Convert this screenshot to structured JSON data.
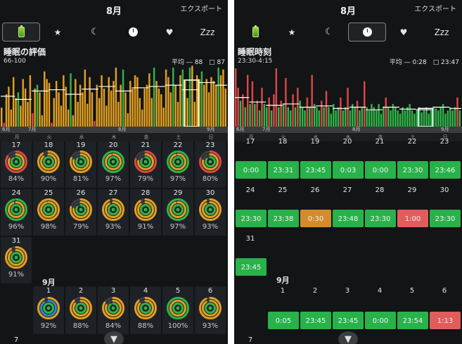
{
  "colors": {
    "background": "#121416",
    "grade_low": "#e04646",
    "grade_mid": "#e2a021",
    "grade_high": "#30b54a",
    "avg_line": "#ffffff"
  },
  "left": {
    "header": {
      "title": "8月",
      "export_label": "エクスポート"
    },
    "icon_bar": [
      {
        "icon": "battery-icon",
        "label": "",
        "active": true
      },
      {
        "icon": "star-icon",
        "label": "★",
        "active": false
      },
      {
        "icon": "moon-icon",
        "label": "☾",
        "active": false
      },
      {
        "icon": "clock-icon",
        "label": "",
        "active": false
      },
      {
        "icon": "heart-icon",
        "label": "♥",
        "active": false
      },
      {
        "icon": "zzz-icon",
        "label": "Zzz",
        "active": false
      }
    ],
    "chart_title": "睡眠の評価",
    "chart_range": "66-100",
    "chart_avg": "平均 ― 88　□ 87",
    "axis_labels": [
      "6月",
      "7月",
      "8月",
      "9月"
    ],
    "chart_data": {
      "type": "bar",
      "title": "睡眠の評価",
      "ylim": [
        66,
        100
      ],
      "average": 88,
      "values": [
        76,
        68,
        83,
        87,
        75,
        92,
        81,
        84,
        77,
        91,
        86,
        79,
        93,
        73,
        86,
        88,
        84,
        72,
        95,
        91,
        89,
        68,
        81,
        90,
        84,
        77,
        93,
        87,
        75,
        94,
        72,
        91,
        79,
        88,
        84,
        96,
        78,
        92,
        84,
        69,
        88,
        81,
        93,
        86,
        77,
        92,
        85,
        90,
        97,
        79,
        88,
        96,
        84,
        73,
        90,
        86,
        93,
        92,
        81,
        75,
        86,
        88,
        94,
        81,
        97,
        90,
        86,
        83,
        76,
        96,
        92,
        84,
        97,
        88,
        79,
        93,
        96,
        90,
        81,
        97,
        98,
        79,
        93,
        91,
        95,
        88,
        91,
        84,
        92,
        90,
        88,
        97,
        93,
        96,
        86
      ],
      "grades": [
        "m",
        "l",
        "m",
        "m",
        "m",
        "m",
        "m",
        "h",
        "m",
        "m",
        "m",
        "m",
        "m",
        "l",
        "m",
        "h",
        "m",
        "m",
        "m",
        "m",
        "m",
        "l",
        "m",
        "m",
        "m",
        "m",
        "m",
        "m",
        "m",
        "h",
        "m",
        "m",
        "m",
        "m",
        "m",
        "m",
        "m",
        "m",
        "m",
        "l",
        "m",
        "m",
        "m",
        "m",
        "m",
        "m",
        "m",
        "m",
        "m",
        "m",
        "m",
        "h",
        "m",
        "m",
        "m",
        "m",
        "m",
        "m",
        "m",
        "m",
        "m",
        "m",
        "m",
        "m",
        "h",
        "m",
        "m",
        "m",
        "m",
        "m",
        "m",
        "m",
        "h",
        "m",
        "m",
        "m",
        "h",
        "m",
        "m",
        "h",
        "m",
        "m",
        "m",
        "m",
        "h",
        "m",
        "m",
        "m",
        "m",
        "m",
        "m",
        "h",
        "m",
        "m",
        "m"
      ],
      "selected_range": [
        77,
        83
      ]
    },
    "dow_labels": [
      "月",
      "火",
      "水",
      "木",
      "金",
      "土",
      "日"
    ],
    "weeks": [
      {
        "days": [
          {
            "day": "17",
            "pct": "84%",
            "grade": "r"
          },
          {
            "day": "18",
            "pct": "90%",
            "grade": "o"
          },
          {
            "day": "19",
            "pct": "81%",
            "grade": "o"
          },
          {
            "day": "20",
            "pct": "97%",
            "grade": "g"
          },
          {
            "day": "21",
            "pct": "79%",
            "grade": "r"
          },
          {
            "day": "22",
            "pct": "97%",
            "grade": "g"
          },
          {
            "day": "23",
            "pct": "80%",
            "grade": "r"
          }
        ]
      },
      {
        "days": [
          {
            "day": "24",
            "pct": "96%",
            "grade": "g"
          },
          {
            "day": "25",
            "pct": "98%",
            "grade": "o"
          },
          {
            "day": "26",
            "pct": "79%",
            "grade": "o"
          },
          {
            "day": "27",
            "pct": "93%",
            "grade": "o"
          },
          {
            "day": "28",
            "pct": "91%",
            "grade": "o"
          },
          {
            "day": "29",
            "pct": "97%",
            "grade": "g"
          },
          {
            "day": "30",
            "pct": "93%",
            "grade": "o"
          }
        ]
      },
      {
        "days": [
          {
            "day": "31",
            "pct": "91%",
            "grade": "o"
          }
        ]
      }
    ],
    "sept_label": "9月",
    "sept_week": [
      {
        "day": "1",
        "pct": "92%",
        "grade": "b"
      },
      {
        "day": "2",
        "pct": "88%",
        "grade": "o"
      },
      {
        "day": "3",
        "pct": "84%",
        "grade": "o"
      },
      {
        "day": "4",
        "pct": "88%",
        "grade": "o"
      },
      {
        "day": "5",
        "pct": "100%",
        "grade": "g"
      },
      {
        "day": "6",
        "pct": "93%",
        "grade": "o"
      }
    ],
    "next_day": "7",
    "filter_icon": "▼"
  },
  "right": {
    "header": {
      "title": "8月",
      "export_label": "エクスポート"
    },
    "icon_bar": [
      {
        "icon": "battery-icon",
        "label": "",
        "active": false
      },
      {
        "icon": "star-icon",
        "label": "★",
        "active": false
      },
      {
        "icon": "moon-icon",
        "label": "☾",
        "active": false
      },
      {
        "icon": "clock-icon",
        "label": "",
        "active": true
      },
      {
        "icon": "heart-icon",
        "label": "♥",
        "active": false
      },
      {
        "icon": "zzz-icon",
        "label": "Zzz",
        "active": false
      }
    ],
    "chart_title": "睡眠時刻",
    "chart_range": "23:30-4:15",
    "chart_avg": "平均 ― 0:28　□ 23:47",
    "axis_labels": [
      "6月",
      "7月",
      "8月",
      "9月"
    ],
    "chart_data": {
      "type": "bar",
      "title": "睡眠時刻",
      "values": [
        0.9,
        0.6,
        0.4,
        0.5,
        0.3,
        0.8,
        0.35,
        0.7,
        0.35,
        0.4,
        0.25,
        0.6,
        0.35,
        0.3,
        0.45,
        0.25,
        0.5,
        0.9,
        0.3,
        0.4,
        0.35,
        0.75,
        0.3,
        0.25,
        0.5,
        0.3,
        0.6,
        0.4,
        0.3,
        0.25,
        0.45,
        0.3,
        0.8,
        0.35,
        0.3,
        0.25,
        0.4,
        0.3,
        0.55,
        0.3,
        0.2,
        0.35,
        0.25,
        0.3,
        0.45,
        0.25,
        0.3,
        0.6,
        0.25,
        0.35,
        0.3,
        0.4,
        0.25,
        0.3,
        0.7,
        0.3,
        0.25,
        0.35,
        0.3,
        0.25,
        0.35,
        0.2,
        0.3,
        0.45,
        0.3,
        0.25,
        0.35,
        0.3,
        0.25,
        0.2,
        0.3,
        0.25,
        0.3,
        0.35,
        0.25,
        0.2,
        0.25,
        0.3,
        0.22,
        0.25,
        0.3,
        0.2,
        0.25,
        0.3,
        0.28,
        0.25,
        0.3,
        0.35,
        0.2,
        0.25,
        0.3,
        0.25,
        0.3,
        0.45,
        0.25
      ],
      "grades": [
        "r",
        "r",
        "g",
        "r",
        "g",
        "r",
        "g",
        "r",
        "g",
        "r",
        "g",
        "r",
        "g",
        "g",
        "r",
        "g",
        "r",
        "r",
        "g",
        "r",
        "g",
        "r",
        "g",
        "g",
        "r",
        "g",
        "r",
        "g",
        "g",
        "g",
        "r",
        "g",
        "r",
        "g",
        "g",
        "g",
        "r",
        "g",
        "r",
        "g",
        "g",
        "g",
        "g",
        "g",
        "r",
        "g",
        "g",
        "r",
        "g",
        "g",
        "g",
        "r",
        "g",
        "g",
        "r",
        "g",
        "g",
        "g",
        "g",
        "g",
        "g",
        "g",
        "g",
        "r",
        "g",
        "g",
        "g",
        "g",
        "g",
        "g",
        "g",
        "g",
        "g",
        "g",
        "g",
        "g",
        "g",
        "g",
        "g",
        "g",
        "g",
        "g",
        "g",
        "g",
        "g",
        "g",
        "g",
        "g",
        "g",
        "g",
        "g",
        "g",
        "g",
        "r",
        "g"
      ],
      "selected_range": [
        77,
        83
      ]
    },
    "dow_labels": [
      "月",
      "火",
      "水",
      "木",
      "金",
      "土",
      "日"
    ],
    "weeks": [
      {
        "days": [
          {
            "day": "17",
            "time": "0:00",
            "grade": "green"
          },
          {
            "day": "18",
            "time": "23:31",
            "grade": "green"
          },
          {
            "day": "19",
            "time": "23:45",
            "grade": "green"
          },
          {
            "day": "20",
            "time": "0:03",
            "grade": "green"
          },
          {
            "day": "21",
            "time": "0:00",
            "grade": "green"
          },
          {
            "day": "22",
            "time": "23:30",
            "grade": "green"
          },
          {
            "day": "23",
            "time": "23:46",
            "grade": "green"
          }
        ]
      },
      {
        "days": [
          {
            "day": "24",
            "time": "23:30",
            "grade": "green"
          },
          {
            "day": "25",
            "time": "23:38",
            "grade": "green"
          },
          {
            "day": "26",
            "time": "0:30",
            "grade": "orange"
          },
          {
            "day": "27",
            "time": "23:48",
            "grade": "green"
          },
          {
            "day": "28",
            "time": "23:30",
            "grade": "green"
          },
          {
            "day": "29",
            "time": "1:00",
            "grade": "red"
          },
          {
            "day": "30",
            "time": "23:30",
            "grade": "green"
          }
        ]
      },
      {
        "days": [
          {
            "day": "31",
            "time": "23:45",
            "grade": "green"
          }
        ]
      }
    ],
    "sept_label": "9月",
    "sept_week": [
      {
        "day": "1",
        "time": "0:05",
        "grade": "green"
      },
      {
        "day": "2",
        "time": "23:45",
        "grade": "green"
      },
      {
        "day": "3",
        "time": "23:45",
        "grade": "green"
      },
      {
        "day": "4",
        "time": "0:00",
        "grade": "green"
      },
      {
        "day": "5",
        "time": "23:54",
        "grade": "green"
      },
      {
        "day": "6",
        "time": "1:13",
        "grade": "red"
      }
    ],
    "next_day": "7",
    "filter_icon": "▼"
  }
}
